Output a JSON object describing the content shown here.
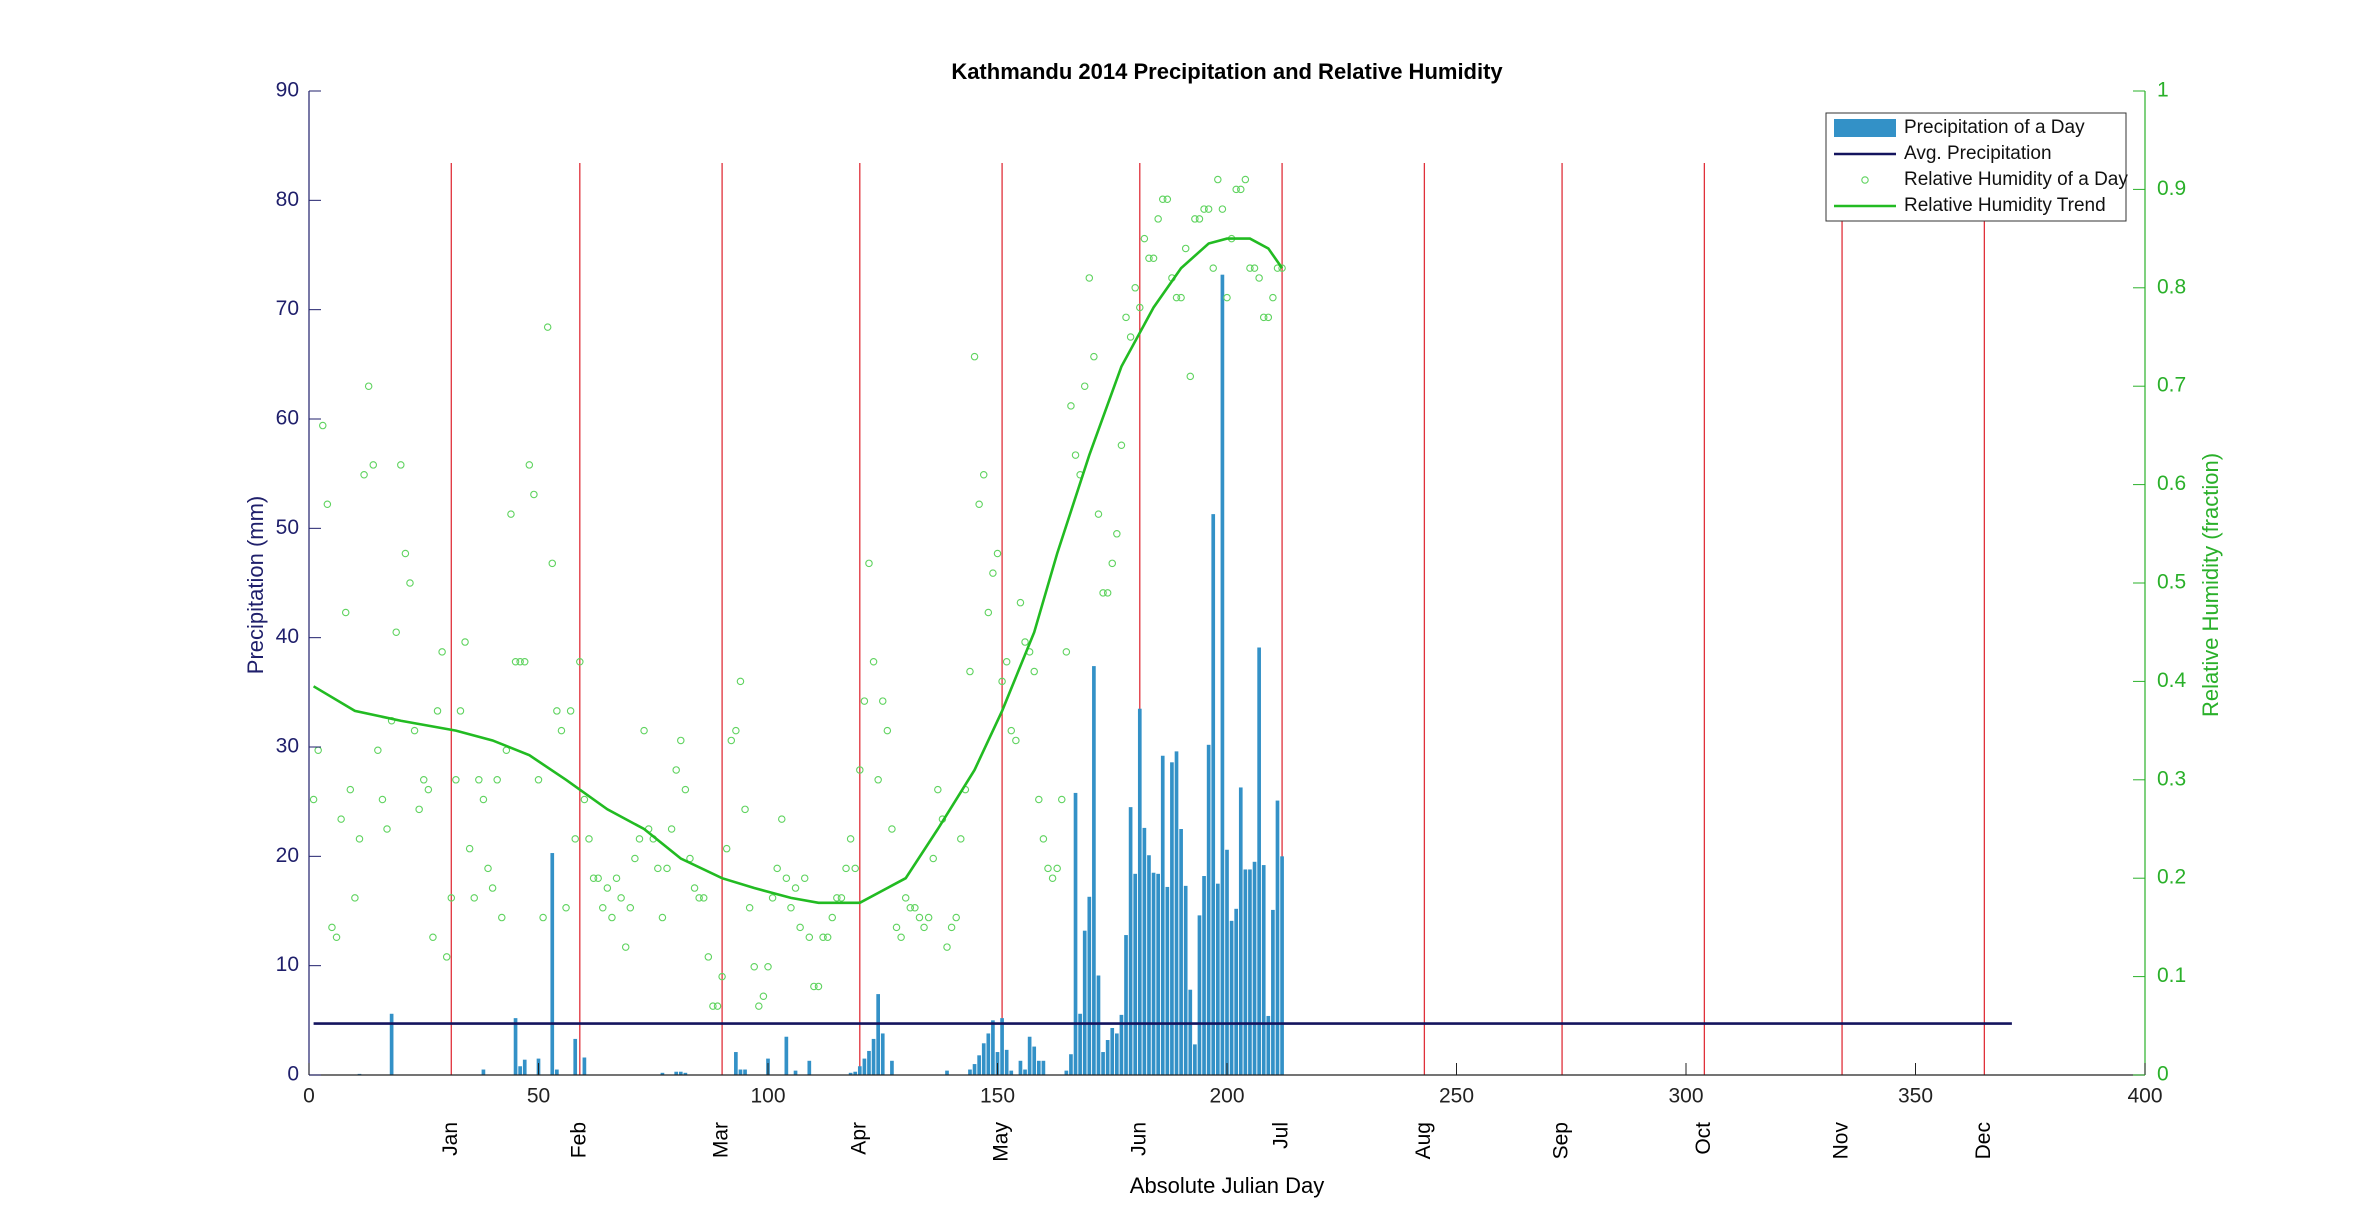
{
  "chart_data": {
    "type": "bar",
    "title": "Kathmandu 2014 Precipitation and Relative Humidity",
    "x_label": "Absolute Julian Day",
    "y_label": "Precipitation (mm)",
    "y2_label": "Relative Humidity (fraction)",
    "xlim": [
      0,
      400
    ],
    "xticks": [
      0,
      50,
      100,
      150,
      200,
      250,
      300,
      350,
      400
    ],
    "ylim": [
      0,
      90
    ],
    "yticks": [
      0,
      10,
      20,
      30,
      40,
      50,
      60,
      70,
      80,
      90
    ],
    "y2lim": [
      0,
      1
    ],
    "y2ticks": [
      0,
      0.1,
      0.2,
      0.3,
      0.4,
      0.5,
      0.6,
      0.7,
      0.8,
      0.9,
      1
    ],
    "y_color": "#1f1f6b",
    "y2_color": "#2ab02a",
    "legend": "upper right",
    "month_lines": {
      "color": "#e0303a",
      "x": [
        31,
        59,
        90,
        120,
        151,
        181,
        212,
        243,
        273,
        304,
        334,
        365
      ],
      "labels": [
        "Jan",
        "Feb",
        "Mar",
        "Apr",
        "May",
        "Jun",
        "Jul",
        "Aug",
        "Sep",
        "Oct",
        "Nov",
        "Dec"
      ]
    },
    "series": [
      {
        "name": "Precipitation of a Day",
        "type": "bar",
        "color": "#3391c7",
        "x": [
          11,
          18,
          38,
          45,
          46,
          47,
          50,
          53,
          54,
          58,
          60,
          77,
          80,
          81,
          82,
          93,
          94,
          95,
          100,
          104,
          106,
          109,
          118,
          119,
          120,
          121,
          122,
          123,
          124,
          125,
          127,
          139,
          144,
          145,
          146,
          147,
          148,
          149,
          150,
          151,
          152,
          153,
          155,
          156,
          157,
          158,
          159,
          160,
          165,
          166,
          167,
          168,
          169,
          170,
          171,
          172,
          173,
          174,
          175,
          176,
          177,
          178,
          179,
          180,
          181,
          182,
          183,
          184,
          185,
          186,
          187,
          188,
          189,
          190,
          191,
          192,
          193,
          194,
          195,
          196,
          197,
          198,
          199,
          200,
          201,
          202,
          203,
          204,
          205,
          206,
          207,
          208,
          209,
          210,
          211,
          212
        ],
        "values": [
          0.1,
          5.6,
          0.5,
          5.2,
          0.8,
          1.4,
          1.5,
          20.3,
          0.5,
          3.3,
          1.6,
          0.2,
          0.3,
          0.3,
          0.2,
          2.1,
          0.5,
          0.5,
          1.5,
          3.5,
          0.4,
          1.3,
          0.2,
          0.3,
          0.8,
          1.5,
          2.2,
          3.3,
          7.4,
          3.8,
          1.3,
          0.4,
          0.5,
          1.0,
          1.8,
          2.9,
          3.8,
          5.0,
          2.1,
          5.2,
          2.3,
          0.4,
          1.3,
          0.5,
          3.5,
          2.6,
          1.3,
          1.3,
          0.4,
          1.9,
          25.8,
          5.6,
          13.2,
          16.3,
          37.4,
          9.1,
          2.1,
          3.2,
          4.3,
          3.8,
          5.5,
          12.8,
          24.5,
          18.4,
          33.5,
          22.6,
          20.1,
          18.5,
          18.4,
          29.2,
          17.2,
          28.6,
          29.6,
          22.5,
          17.3,
          7.8,
          2.8,
          14.6,
          18.2,
          30.2,
          51.3,
          17.5,
          73.2,
          20.6,
          14.1,
          15.2,
          26.3,
          18.8,
          18.8,
          19.5,
          39.1,
          19.2,
          5.4,
          15.1,
          25.1,
          20.0
        ]
      },
      {
        "name": "Avg. Precipitation",
        "type": "line",
        "color": "#14145e",
        "x": [
          1,
          371
        ],
        "values": [
          4.7,
          4.7
        ]
      },
      {
        "name": "Relative Humidity of a Day",
        "type": "scatter",
        "axis": "y2",
        "color": "#5fd35f",
        "x": [
          1,
          2,
          3,
          4,
          5,
          6,
          7,
          8,
          9,
          10,
          11,
          12,
          13,
          14,
          15,
          16,
          17,
          18,
          19,
          20,
          21,
          22,
          23,
          24,
          25,
          26,
          27,
          28,
          29,
          30,
          31,
          32,
          33,
          34,
          35,
          36,
          37,
          38,
          39,
          40,
          41,
          42,
          43,
          44,
          45,
          46,
          47,
          48,
          49,
          50,
          51,
          52,
          53,
          54,
          55,
          56,
          57,
          58,
          59,
          60,
          61,
          62,
          63,
          64,
          65,
          66,
          67,
          68,
          69,
          70,
          71,
          72,
          73,
          74,
          75,
          76,
          77,
          78,
          79,
          80,
          81,
          82,
          83,
          84,
          85,
          86,
          87,
          88,
          89,
          90,
          91,
          92,
          93,
          94,
          95,
          96,
          97,
          98,
          99,
          100,
          101,
          102,
          103,
          104,
          105,
          106,
          107,
          108,
          109,
          110,
          111,
          112,
          113,
          114,
          115,
          116,
          117,
          118,
          119,
          120,
          121,
          122,
          123,
          124,
          125,
          126,
          127,
          128,
          129,
          130,
          131,
          132,
          133,
          134,
          135,
          136,
          137,
          138,
          139,
          140,
          141,
          142,
          143,
          144,
          145,
          146,
          147,
          148,
          149,
          150,
          151,
          152,
          153,
          154,
          155,
          156,
          157,
          158,
          159,
          160,
          161,
          162,
          163,
          164,
          165,
          166,
          167,
          168,
          169,
          170,
          171,
          172,
          173,
          174,
          175,
          176,
          177,
          178,
          179,
          180,
          181,
          182,
          183,
          184,
          185,
          186,
          187,
          188,
          189,
          190,
          191,
          192,
          193,
          194,
          195,
          196,
          197,
          198,
          199,
          200,
          201,
          202,
          203,
          204,
          205,
          206,
          207,
          208,
          209,
          210,
          211,
          212
        ],
        "values": [
          0.28,
          0.33,
          0.66,
          0.58,
          0.15,
          0.14,
          0.26,
          0.47,
          0.29,
          0.18,
          0.24,
          0.61,
          0.7,
          0.62,
          0.33,
          0.28,
          0.25,
          0.36,
          0.45,
          0.62,
          0.53,
          0.5,
          0.35,
          0.27,
          0.3,
          0.29,
          0.14,
          0.37,
          0.43,
          0.12,
          0.18,
          0.3,
          0.37,
          0.44,
          0.23,
          0.18,
          0.3,
          0.28,
          0.21,
          0.19,
          0.3,
          0.16,
          0.33,
          0.57,
          0.42,
          0.42,
          0.42,
          0.62,
          0.59,
          0.3,
          0.16,
          0.76,
          0.52,
          0.37,
          0.35,
          0.17,
          0.37,
          0.24,
          0.42,
          0.28,
          0.24,
          0.2,
          0.2,
          0.17,
          0.19,
          0.16,
          0.2,
          0.18,
          0.13,
          0.17,
          0.22,
          0.24,
          0.35,
          0.25,
          0.24,
          0.21,
          0.16,
          0.21,
          0.25,
          0.31,
          0.34,
          0.29,
          0.22,
          0.19,
          0.18,
          0.18,
          0.12,
          0.07,
          0.07,
          0.1,
          0.23,
          0.34,
          0.35,
          0.4,
          0.27,
          0.17,
          0.11,
          0.07,
          0.08,
          0.11,
          0.18,
          0.21,
          0.26,
          0.2,
          0.17,
          0.19,
          0.15,
          0.2,
          0.14,
          0.09,
          0.09,
          0.14,
          0.14,
          0.16,
          0.18,
          0.18,
          0.21,
          0.24,
          0.21,
          0.31,
          0.38,
          0.52,
          0.42,
          0.3,
          0.38,
          0.35,
          0.25,
          0.15,
          0.14,
          0.18,
          0.17,
          0.17,
          0.16,
          0.15,
          0.16,
          0.22,
          0.29,
          0.26,
          0.13,
          0.15,
          0.16,
          0.24,
          0.29,
          0.41,
          0.73,
          0.58,
          0.61,
          0.47,
          0.51,
          0.53,
          0.4,
          0.42,
          0.35,
          0.34,
          0.48,
          0.44,
          0.43,
          0.41,
          0.28,
          0.24,
          0.21,
          0.2,
          0.21,
          0.28,
          0.43,
          0.68,
          0.63,
          0.61,
          0.7,
          0.81,
          0.73,
          0.57,
          0.49,
          0.49,
          0.52,
          0.55,
          0.64,
          0.77,
          0.75,
          0.8,
          0.78,
          0.85,
          0.83,
          0.83,
          0.87,
          0.89,
          0.89,
          0.81,
          0.79,
          0.79,
          0.84,
          0.71,
          0.87,
          0.87,
          0.88,
          0.88,
          0.82,
          0.91,
          0.88,
          0.79,
          0.85,
          0.9,
          0.9,
          0.91,
          0.82,
          0.82,
          0.81,
          0.77,
          0.77,
          0.79,
          0.82,
          0.82
        ]
      },
      {
        "name": "Relative Humidity Trend",
        "type": "line",
        "axis": "y2",
        "color": "#22bb22",
        "x": [
          1,
          10,
          20,
          32,
          40,
          48,
          56,
          65,
          73,
          81,
          90,
          97,
          105,
          111,
          120,
          130,
          137,
          145,
          151,
          158,
          163,
          170,
          177,
          184,
          190,
          196,
          200,
          205,
          209,
          212
        ],
        "values": [
          0.395,
          0.37,
          0.36,
          0.35,
          0.34,
          0.325,
          0.3,
          0.27,
          0.25,
          0.22,
          0.2,
          0.19,
          0.18,
          0.175,
          0.175,
          0.2,
          0.25,
          0.31,
          0.37,
          0.45,
          0.53,
          0.63,
          0.72,
          0.78,
          0.82,
          0.845,
          0.85,
          0.85,
          0.84,
          0.82
        ]
      }
    ]
  }
}
